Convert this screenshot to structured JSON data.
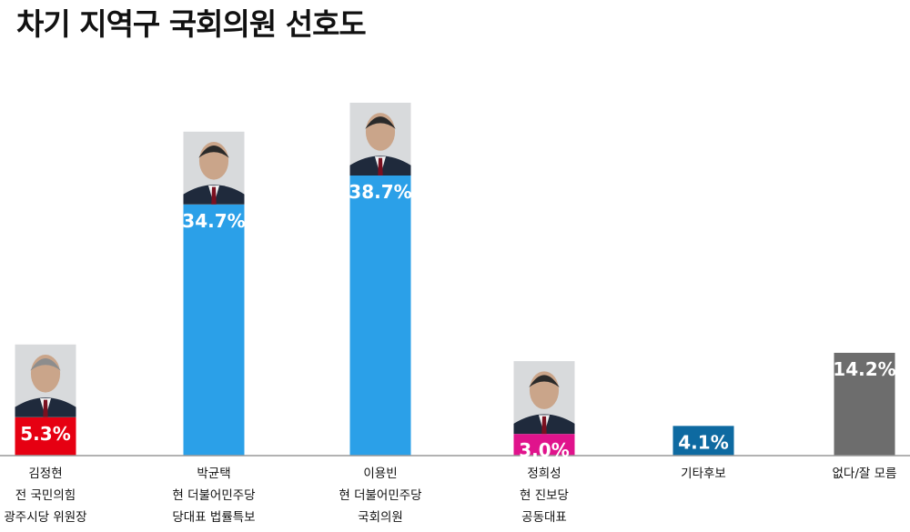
{
  "title": "차기 지역구 국회의원 선호도",
  "chart_data": {
    "type": "bar",
    "title": "차기 지역구 국회의원 선호도",
    "unit": "%",
    "ylim": [
      0,
      40
    ],
    "grid": false,
    "categories": [
      [
        "김정현",
        "전 국민의힘",
        "광주시당 위원장"
      ],
      [
        "박균택",
        "현 더불어민주당",
        "당대표 법률특보"
      ],
      [
        "이용빈",
        "현 더불어민주당",
        "국회의원"
      ],
      [
        "정희성",
        "현 진보당",
        "공동대표"
      ],
      [
        "기타후보"
      ],
      [
        "없다/잘 모름"
      ]
    ],
    "values": [
      5.3,
      34.7,
      38.7,
      3.0,
      4.1,
      14.2
    ],
    "value_labels": [
      "5.3%",
      "34.7%",
      "38.7%",
      "3.0%",
      "4.1%",
      "14.2%"
    ],
    "colors": [
      "#e60012",
      "#2ba0e8",
      "#2ba0e8",
      "#e0138c",
      "#0e6aa1",
      "#6d6d6d"
    ],
    "has_photo": [
      true,
      true,
      true,
      true,
      false,
      false
    ]
  }
}
